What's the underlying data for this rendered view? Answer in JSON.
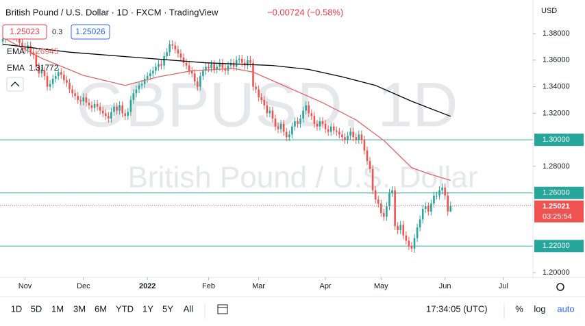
{
  "header": {
    "title": "British Pound / U.S. Dollar · 1D · FXCM · TradingView",
    "change": "−0.00724 (−0.58%)",
    "sell": "1.25023",
    "spread": "0.3",
    "buy": "1.25026",
    "currency": "USD"
  },
  "chart_data": {
    "type": "candlestick",
    "watermark": "GBPUSD, 1D",
    "watermark_subtitle": "British Pound / U.S. Dollar",
    "up_color": "#26a69a",
    "down_color": "#ef5350",
    "open": [
      1.374,
      1.376,
      1.379,
      1.382,
      1.381,
      1.378,
      1.377,
      1.373,
      1.37,
      1.368,
      1.371,
      1.366,
      1.364,
      1.355,
      1.35,
      1.352,
      1.348,
      1.34,
      1.342,
      1.346,
      1.348,
      1.351,
      1.349,
      1.345,
      1.343,
      1.338,
      1.335,
      1.333,
      1.33,
      1.329,
      1.332,
      1.328,
      1.326,
      1.324,
      1.327,
      1.325,
      1.322,
      1.32,
      1.318,
      1.316,
      1.321,
      1.325,
      1.322,
      1.326,
      1.32,
      1.318,
      1.321,
      1.33,
      1.335,
      1.338,
      1.341,
      1.342,
      1.346,
      1.348,
      1.35,
      1.352,
      1.355,
      1.357,
      1.356,
      1.363,
      1.366,
      1.372,
      1.371,
      1.368,
      1.365,
      1.362,
      1.358,
      1.356,
      1.352,
      1.35,
      1.344,
      1.34,
      1.348,
      1.352,
      1.355,
      1.354,
      1.357,
      1.353,
      1.355,
      1.358,
      1.354,
      1.352,
      1.356,
      1.358,
      1.355,
      1.36,
      1.361,
      1.358,
      1.356,
      1.36,
      1.358,
      1.34,
      1.338,
      1.332,
      1.33,
      1.326,
      1.32,
      1.322,
      1.316,
      1.31,
      1.308,
      1.312,
      1.306,
      1.302,
      1.304,
      1.31,
      1.314,
      1.312,
      1.316,
      1.322,
      1.326,
      1.32,
      1.318,
      1.312,
      1.31,
      1.314,
      1.312,
      1.308,
      1.306,
      1.31,
      1.307,
      1.306,
      1.304,
      1.302,
      1.3,
      1.303,
      1.306,
      1.302,
      1.3,
      1.304,
      1.3,
      1.292,
      1.284,
      1.278,
      1.262,
      1.255,
      1.252,
      1.245,
      1.242,
      1.25,
      1.26,
      1.262,
      1.235,
      1.232,
      1.236,
      1.228,
      1.224,
      1.22,
      1.218,
      1.226,
      1.234,
      1.24,
      1.248,
      1.25,
      1.246,
      1.252,
      1.258,
      1.258,
      1.262,
      1.264,
      1.258,
      1.246
    ],
    "high": [
      1.379,
      1.382,
      1.385,
      1.385,
      1.384,
      1.381,
      1.38,
      1.376,
      1.373,
      1.374,
      1.374,
      1.369,
      1.367,
      1.358,
      1.355,
      1.355,
      1.351,
      1.345,
      1.349,
      1.351,
      1.354,
      1.354,
      1.352,
      1.348,
      1.346,
      1.341,
      1.338,
      1.336,
      1.333,
      1.335,
      1.335,
      1.331,
      1.329,
      1.33,
      1.33,
      1.328,
      1.325,
      1.323,
      1.321,
      1.324,
      1.328,
      1.328,
      1.329,
      1.329,
      1.323,
      1.324,
      1.333,
      1.338,
      1.341,
      1.344,
      1.345,
      1.349,
      1.351,
      1.353,
      1.355,
      1.358,
      1.36,
      1.36,
      1.366,
      1.369,
      1.375,
      1.375,
      1.374,
      1.371,
      1.368,
      1.365,
      1.361,
      1.359,
      1.355,
      1.353,
      1.347,
      1.351,
      1.355,
      1.358,
      1.358,
      1.36,
      1.36,
      1.358,
      1.361,
      1.361,
      1.357,
      1.359,
      1.361,
      1.361,
      1.363,
      1.364,
      1.364,
      1.361,
      1.363,
      1.363,
      1.361,
      1.343,
      1.341,
      1.335,
      1.333,
      1.329,
      1.325,
      1.325,
      1.319,
      1.313,
      1.315,
      1.315,
      1.309,
      1.307,
      1.313,
      1.317,
      1.317,
      1.319,
      1.325,
      1.329,
      1.329,
      1.323,
      1.321,
      1.315,
      1.317,
      1.317,
      1.315,
      1.311,
      1.313,
      1.313,
      1.31,
      1.309,
      1.307,
      1.305,
      1.306,
      1.309,
      1.309,
      1.305,
      1.307,
      1.307,
      1.303,
      1.295,
      1.287,
      1.281,
      1.265,
      1.258,
      1.255,
      1.248,
      1.253,
      1.263,
      1.265,
      1.265,
      1.238,
      1.239,
      1.239,
      1.231,
      1.227,
      1.223,
      1.229,
      1.237,
      1.243,
      1.251,
      1.253,
      1.253,
      1.255,
      1.261,
      1.261,
      1.265,
      1.267,
      1.267,
      1.261,
      1.2535
    ],
    "low": [
      1.371,
      1.373,
      1.376,
      1.378,
      1.375,
      1.374,
      1.37,
      1.367,
      1.365,
      1.365,
      1.363,
      1.361,
      1.352,
      1.347,
      1.347,
      1.345,
      1.337,
      1.337,
      1.339,
      1.343,
      1.345,
      1.346,
      1.342,
      1.34,
      1.335,
      1.332,
      1.33,
      1.327,
      1.326,
      1.326,
      1.325,
      1.323,
      1.321,
      1.321,
      1.322,
      1.319,
      1.317,
      1.315,
      1.313,
      1.313,
      1.318,
      1.319,
      1.319,
      1.317,
      1.315,
      1.315,
      1.318,
      1.327,
      1.332,
      1.335,
      1.338,
      1.339,
      1.343,
      1.345,
      1.347,
      1.349,
      1.352,
      1.353,
      1.353,
      1.36,
      1.363,
      1.368,
      1.365,
      1.362,
      1.359,
      1.355,
      1.353,
      1.349,
      1.347,
      1.341,
      1.337,
      1.337,
      1.345,
      1.349,
      1.351,
      1.351,
      1.35,
      1.35,
      1.352,
      1.351,
      1.349,
      1.349,
      1.353,
      1.352,
      1.352,
      1.357,
      1.355,
      1.353,
      1.353,
      1.355,
      1.337,
      1.335,
      1.329,
      1.327,
      1.323,
      1.317,
      1.317,
      1.313,
      1.307,
      1.305,
      1.305,
      1.303,
      1.299,
      1.299,
      1.301,
      1.307,
      1.309,
      1.309,
      1.313,
      1.319,
      1.317,
      1.315,
      1.309,
      1.307,
      1.307,
      1.309,
      1.305,
      1.303,
      1.303,
      1.304,
      1.303,
      1.301,
      1.299,
      1.297,
      1.297,
      1.3,
      1.299,
      1.297,
      1.297,
      1.297,
      1.289,
      1.281,
      1.275,
      1.259,
      1.252,
      1.249,
      1.242,
      1.239,
      1.239,
      1.247,
      1.257,
      1.232,
      1.229,
      1.229,
      1.225,
      1.221,
      1.217,
      1.2155,
      1.215,
      1.223,
      1.231,
      1.237,
      1.245,
      1.243,
      1.243,
      1.249,
      1.255,
      1.255,
      1.259,
      1.255,
      1.243,
      1.2455
    ],
    "close": [
      1.376,
      1.379,
      1.382,
      1.381,
      1.378,
      1.377,
      1.373,
      1.37,
      1.368,
      1.371,
      1.366,
      1.364,
      1.355,
      1.35,
      1.352,
      1.348,
      1.34,
      1.342,
      1.346,
      1.348,
      1.351,
      1.349,
      1.345,
      1.343,
      1.338,
      1.335,
      1.333,
      1.33,
      1.329,
      1.332,
      1.328,
      1.326,
      1.324,
      1.327,
      1.325,
      1.322,
      1.32,
      1.318,
      1.316,
      1.321,
      1.325,
      1.322,
      1.326,
      1.32,
      1.318,
      1.321,
      1.33,
      1.335,
      1.338,
      1.341,
      1.342,
      1.346,
      1.348,
      1.35,
      1.352,
      1.355,
      1.357,
      1.356,
      1.363,
      1.366,
      1.372,
      1.371,
      1.368,
      1.365,
      1.362,
      1.358,
      1.356,
      1.352,
      1.35,
      1.344,
      1.34,
      1.348,
      1.352,
      1.355,
      1.354,
      1.357,
      1.353,
      1.355,
      1.358,
      1.354,
      1.352,
      1.356,
      1.358,
      1.355,
      1.36,
      1.361,
      1.358,
      1.356,
      1.36,
      1.358,
      1.34,
      1.338,
      1.332,
      1.33,
      1.326,
      1.32,
      1.322,
      1.316,
      1.31,
      1.308,
      1.312,
      1.306,
      1.302,
      1.304,
      1.31,
      1.314,
      1.312,
      1.316,
      1.322,
      1.326,
      1.32,
      1.318,
      1.312,
      1.31,
      1.314,
      1.312,
      1.308,
      1.306,
      1.31,
      1.307,
      1.306,
      1.304,
      1.302,
      1.3,
      1.303,
      1.306,
      1.302,
      1.3,
      1.304,
      1.3,
      1.292,
      1.284,
      1.278,
      1.262,
      1.255,
      1.252,
      1.245,
      1.242,
      1.25,
      1.26,
      1.262,
      1.235,
      1.232,
      1.236,
      1.228,
      1.224,
      1.22,
      1.218,
      1.226,
      1.234,
      1.24,
      1.248,
      1.25,
      1.246,
      1.252,
      1.258,
      1.258,
      1.262,
      1.264,
      1.258,
      1.246,
      1.25021
    ],
    "series": [
      {
        "name": "EMA",
        "color": "#e06666",
        "x": [
          0,
          14,
          29,
          44,
          56,
          68,
          83,
          90,
          103,
          115,
          127,
          137,
          147,
          154,
          161
        ],
        "values": [
          1.377,
          1.3614,
          1.3485,
          1.341,
          1.3475,
          1.352,
          1.3537,
          1.351,
          1.339,
          1.328,
          1.315,
          1.2995,
          1.279,
          1.2738,
          1.26945
        ]
      },
      {
        "name": "EMA",
        "color": "#000000",
        "x": [
          0,
          24,
          48,
          73,
          97,
          110,
          122,
          134,
          147,
          161
        ],
        "values": [
          1.372,
          1.366,
          1.362,
          1.358,
          1.356,
          1.353,
          1.3475,
          1.341,
          1.329,
          1.31772
        ]
      }
    ],
    "xlim": [
      -1,
      190.6
    ],
    "xticks": [
      {
        "value": 8,
        "label": "Nov"
      },
      {
        "value": 29,
        "label": "Dec"
      },
      {
        "value": 52,
        "label": "2022"
      },
      {
        "value": 74,
        "label": "Feb"
      },
      {
        "value": 92,
        "label": "Mar"
      },
      {
        "value": 116,
        "label": "Apr"
      },
      {
        "value": 136,
        "label": "May"
      },
      {
        "value": 159,
        "label": "Jun"
      },
      {
        "value": 180,
        "label": "Jul"
      }
    ],
    "ylim": [
      1.1964,
      1.4053
    ],
    "yticks": [
      {
        "value": 1.38,
        "label": "1.38000"
      },
      {
        "value": 1.36,
        "label": "1.36000"
      },
      {
        "value": 1.34,
        "label": "1.34000"
      },
      {
        "value": 1.32,
        "label": "1.32000"
      },
      {
        "value": 1.28,
        "label": "1.28000"
      },
      {
        "value": 1.2,
        "label": "1.20000"
      }
    ],
    "hline_color": "#26a69a",
    "hlines": [
      {
        "value": 1.3,
        "label": "1.30000"
      },
      {
        "value": 1.26,
        "label": "1.26000"
      },
      {
        "value": 1.22,
        "label": "1.22000"
      }
    ],
    "countdown": "03:25:54"
  },
  "toolbar": {
    "ranges": [
      "1D",
      "5D",
      "1M",
      "3M",
      "6M",
      "YTD",
      "1Y",
      "5Y",
      "All"
    ],
    "clock": "17:34:05 (UTC)",
    "options": [
      "%",
      "log",
      "auto"
    ]
  }
}
